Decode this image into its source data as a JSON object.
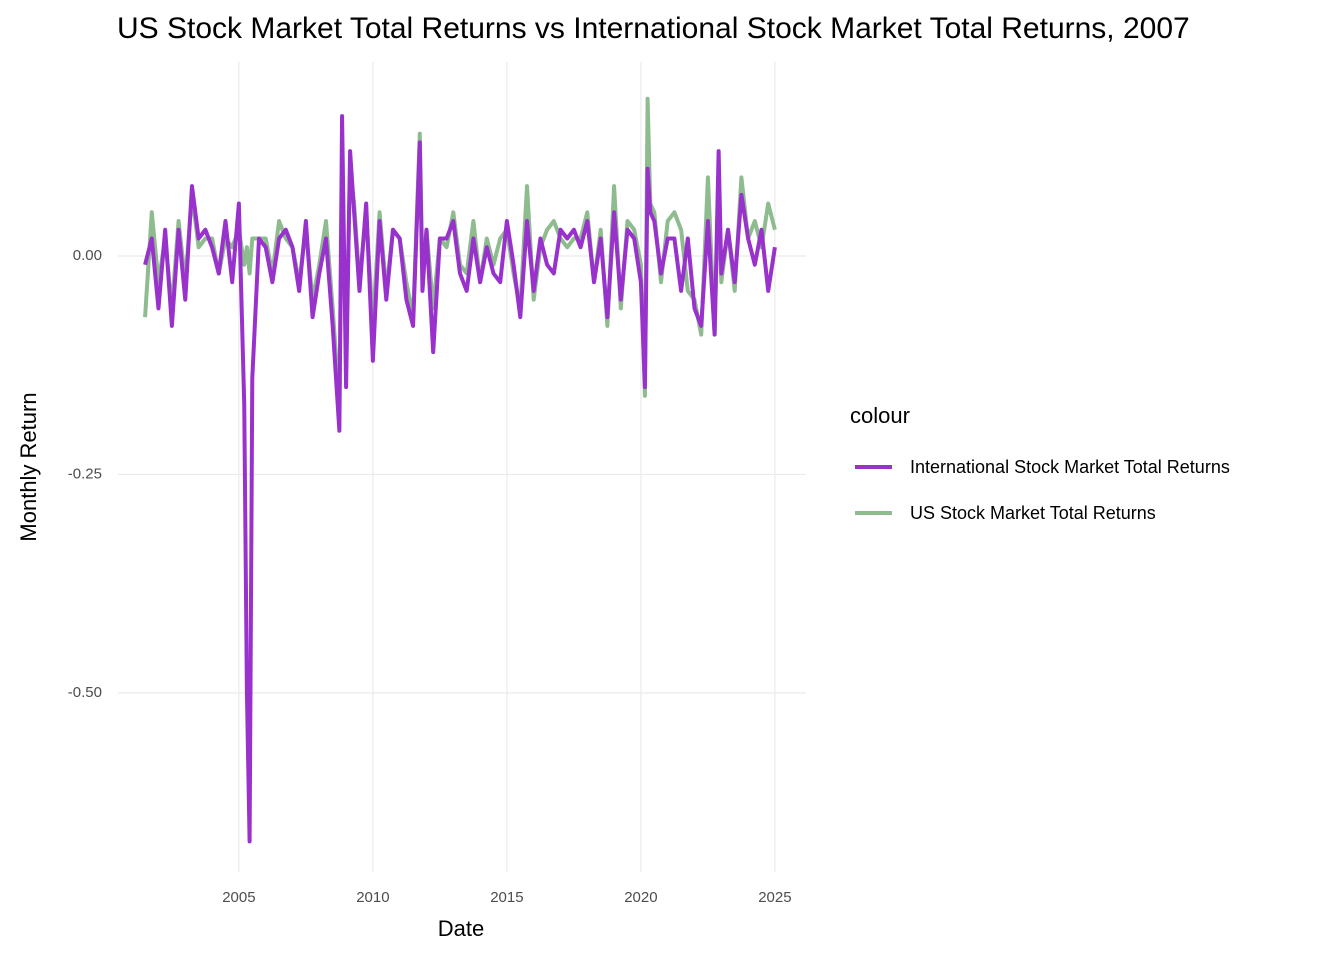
{
  "chart_data": {
    "type": "line",
    "title": "US Stock Market Total Returns vs International Stock Market Total Returns, 2007",
    "x_label": "Date",
    "y_label": "Monthly Return",
    "legend_title": "colour",
    "legend_position": "right",
    "grid": true,
    "x": [
      2001.5,
      2001.75,
      2002,
      2002.25,
      2002.5,
      2002.75,
      2003,
      2003.25,
      2003.5,
      2003.75,
      2004,
      2004.25,
      2004.5,
      2004.75,
      2005,
      2005.2,
      2005.3,
      2005.4,
      2005.5,
      2005.75,
      2006,
      2006.25,
      2006.5,
      2006.75,
      2007,
      2007.25,
      2007.5,
      2007.75,
      2008,
      2008.25,
      2008.5,
      2008.75,
      2008.85,
      2009,
      2009.15,
      2009.3,
      2009.5,
      2009.75,
      2010,
      2010.25,
      2010.5,
      2010.75,
      2011,
      2011.25,
      2011.5,
      2011.75,
      2011.85,
      2012,
      2012.25,
      2012.5,
      2012.75,
      2013,
      2013.25,
      2013.5,
      2013.75,
      2014,
      2014.25,
      2014.5,
      2014.75,
      2015,
      2015.25,
      2015.5,
      2015.75,
      2016,
      2016.25,
      2016.5,
      2016.75,
      2017,
      2017.25,
      2017.5,
      2017.75,
      2018,
      2018.25,
      2018.5,
      2018.75,
      2019,
      2019.25,
      2019.5,
      2019.75,
      2020,
      2020.15,
      2020.25,
      2020.35,
      2020.5,
      2020.75,
      2021,
      2021.25,
      2021.5,
      2021.75,
      2022,
      2022.25,
      2022.5,
      2022.75,
      2022.9,
      2023,
      2023.25,
      2023.5,
      2023.75,
      2024,
      2024.25,
      2024.5,
      2024.75,
      2025
    ],
    "series": [
      {
        "name": "International Stock Market Total Returns",
        "color": "#9932cc",
        "values": [
          -0.01,
          0.02,
          -0.06,
          0.03,
          -0.08,
          0.03,
          -0.05,
          0.08,
          0.02,
          0.03,
          0.01,
          -0.02,
          0.04,
          -0.03,
          0.06,
          -0.17,
          -0.5,
          -0.67,
          -0.14,
          0.02,
          0.01,
          -0.03,
          0.02,
          0.03,
          0.01,
          -0.04,
          0.04,
          -0.07,
          -0.02,
          0.02,
          -0.08,
          -0.2,
          0.16,
          -0.15,
          0.12,
          0.05,
          -0.04,
          0.06,
          -0.12,
          0.04,
          -0.05,
          0.03,
          0.02,
          -0.05,
          -0.08,
          0.13,
          -0.04,
          0.03,
          -0.11,
          0.02,
          0.02,
          0.04,
          -0.02,
          -0.04,
          0.02,
          -0.03,
          0.01,
          -0.02,
          -0.03,
          0.04,
          -0.01,
          -0.07,
          0.04,
          -0.04,
          0.02,
          -0.01,
          -0.02,
          0.03,
          0.02,
          0.03,
          0.01,
          0.04,
          -0.03,
          0.02,
          -0.07,
          0.05,
          -0.05,
          0.03,
          0.02,
          -0.03,
          -0.15,
          0.1,
          0.05,
          0.04,
          -0.02,
          0.02,
          0.02,
          -0.04,
          0.02,
          -0.06,
          -0.08,
          0.04,
          -0.09,
          0.12,
          -0.02,
          0.03,
          -0.03,
          0.07,
          0.02,
          -0.01,
          0.03,
          -0.04,
          0.01
        ]
      },
      {
        "name": "US Stock Market Total Returns",
        "color": "#8fbc8f",
        "values": [
          -0.07,
          0.05,
          -0.03,
          0.02,
          -0.06,
          0.04,
          -0.03,
          0.07,
          0.01,
          0.02,
          0.02,
          -0.02,
          0.02,
          0.01,
          0.03,
          -0.01,
          0.01,
          -0.02,
          0.02,
          0.02,
          0.02,
          -0.02,
          0.04,
          0.02,
          0.01,
          -0.03,
          0.03,
          -0.05,
          -0.01,
          0.04,
          -0.06,
          -0.17,
          0.09,
          -0.11,
          0.1,
          0.06,
          -0.03,
          0.05,
          -0.08,
          0.05,
          -0.04,
          0.03,
          0.02,
          -0.03,
          -0.07,
          0.14,
          -0.02,
          0.03,
          -0.06,
          0.02,
          0.01,
          0.05,
          -0.01,
          -0.02,
          0.04,
          -0.03,
          0.02,
          -0.01,
          0.02,
          0.03,
          -0.02,
          -0.06,
          0.08,
          -0.05,
          0.01,
          0.03,
          0.04,
          0.02,
          0.01,
          0.02,
          0.02,
          0.05,
          -0.03,
          0.03,
          -0.08,
          0.08,
          -0.06,
          0.04,
          0.03,
          -0.01,
          -0.16,
          0.18,
          0.06,
          0.05,
          -0.03,
          0.04,
          0.05,
          0.03,
          -0.04,
          -0.05,
          -0.09,
          0.09,
          -0.09,
          0.08,
          -0.03,
          0.03,
          -0.04,
          0.09,
          0.02,
          0.04,
          0.01,
          0.06,
          0.03
        ]
      }
    ],
    "xlim": [
      2000.49,
      2026.16
    ],
    "xticks": [
      2005,
      2010,
      2015,
      2020,
      2025
    ],
    "ylim": [
      -0.705,
      0.222
    ],
    "yticks": [
      {
        "value": 0,
        "label": "0.00"
      },
      {
        "value": -0.25,
        "label": "-0.25"
      },
      {
        "value": -0.5,
        "label": "-0.50"
      }
    ]
  }
}
